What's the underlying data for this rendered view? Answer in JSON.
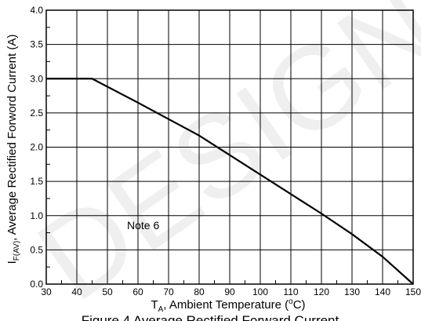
{
  "chart_data": {
    "type": "line",
    "xlabel_main": "T",
    "xlabel_sub": "A",
    "xlabel_rest": ", Ambient Temperature (",
    "xlabel_sup": "o",
    "xlabel_unit": "C)",
    "ylabel_main": "I",
    "ylabel_sub": "F(AV)",
    "ylabel_rest": ", Average Rectified Forword Current (A)",
    "xlim": [
      30,
      150
    ],
    "ylim": [
      0,
      4
    ],
    "x_ticks": [
      "30",
      "40",
      "50",
      "60",
      "70",
      "80",
      "90",
      "100",
      "110",
      "120",
      "130",
      "140",
      "150"
    ],
    "y_ticks": [
      "0.0",
      "0.5",
      "1.0",
      "1.5",
      "2.0",
      "2.5",
      "3.0",
      "3.5",
      "4.0"
    ],
    "grid": true,
    "series": [
      {
        "x": [
          30,
          45,
          60,
          80,
          100,
          120,
          130,
          140,
          145,
          150
        ],
        "y": [
          3.0,
          3.0,
          2.65,
          2.17,
          1.6,
          1.03,
          0.73,
          0.4,
          0.2,
          0.0
        ]
      }
    ],
    "annotation": "Note 6",
    "caption": "Figure 4 Average Rectified Forward Current"
  },
  "watermark": "DESIGNS"
}
